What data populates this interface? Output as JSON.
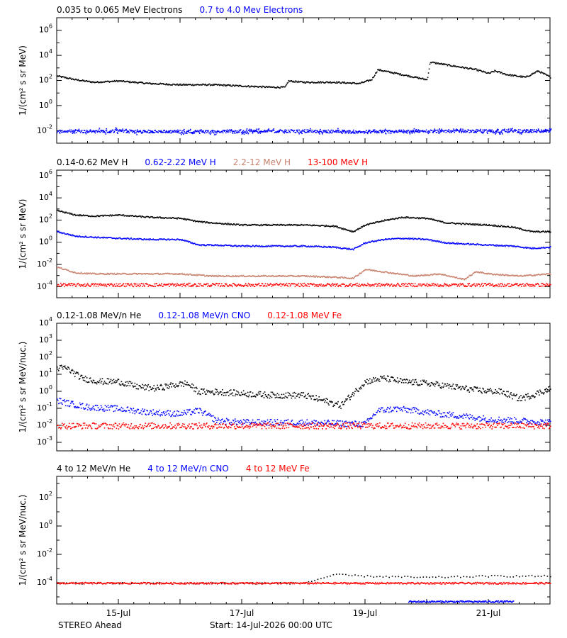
{
  "chart_data": [
    {
      "type": "scatter",
      "title_entries": [
        {
          "name": "0.035 to 0.065 MeV Electrons",
          "color": "#000000"
        },
        {
          "name": "0.7 to 4.0 Mev Electrons",
          "color": "#0000ff"
        }
      ],
      "ylabel": "1/(cm² s sr MeV)",
      "ylim_log10": [
        -3,
        7
      ],
      "y_ticks_exp": [
        -2,
        0,
        2,
        4,
        6
      ],
      "series": [
        {
          "name": "0.035 to 0.065 MeV Electrons",
          "color": "#000000",
          "x_days": [
            0.0,
            0.3,
            0.6,
            1.0,
            1.5,
            2.0,
            2.5,
            3.0,
            3.5,
            3.7,
            3.75,
            4.0,
            4.5,
            4.9,
            5.1,
            5.2,
            5.4,
            5.7,
            6.0,
            6.05,
            6.3,
            6.8,
            7.0,
            7.1,
            7.3,
            7.6,
            7.8,
            8.0
          ],
          "y_log10": [
            2.4,
            2.1,
            1.9,
            2.0,
            1.8,
            1.7,
            1.7,
            1.6,
            1.5,
            1.5,
            2.0,
            1.9,
            1.9,
            1.8,
            2.1,
            2.9,
            2.7,
            2.4,
            2.1,
            3.5,
            3.3,
            2.9,
            2.6,
            2.8,
            2.5,
            2.3,
            2.8,
            2.3
          ]
        },
        {
          "name": "0.7 to 4.0 Mev Electrons",
          "color": "#0000ff",
          "x_days": [
            0.0,
            1.0,
            2.0,
            3.0,
            4.0,
            5.0,
            6.0,
            7.0,
            8.0
          ],
          "y_log10": [
            -2.0,
            -2.0,
            -2.05,
            -2.0,
            -2.0,
            -2.05,
            -2.0,
            -2.0,
            -2.0
          ]
        }
      ]
    },
    {
      "type": "scatter",
      "title_entries": [
        {
          "name": "0.14-0.62 MeV H",
          "color": "#000000"
        },
        {
          "name": "0.62-2.22 MeV H",
          "color": "#0000ff"
        },
        {
          "name": "2.2-12 MeV H",
          "color": "#c8826e"
        },
        {
          "name": "13-100 MeV H",
          "color": "#ff0000"
        }
      ],
      "ylabel": "1/(cm² s sr MeV)",
      "ylim_log10": [
        -5,
        6.5
      ],
      "y_ticks_exp": [
        -4,
        -2,
        0,
        2,
        4,
        6
      ],
      "series": [
        {
          "name": "0.14-0.62 MeV H",
          "color": "#000000",
          "x_days": [
            0.0,
            0.3,
            0.6,
            1.0,
            1.5,
            2.0,
            2.3,
            2.5,
            3.0,
            3.5,
            4.0,
            4.5,
            4.8,
            5.0,
            5.3,
            5.6,
            6.0,
            6.3,
            6.6,
            7.0,
            7.4,
            7.7,
            8.0
          ],
          "y_log10": [
            2.9,
            2.5,
            2.4,
            2.5,
            2.3,
            2.2,
            1.9,
            1.8,
            1.6,
            1.6,
            1.6,
            1.5,
            1.0,
            1.6,
            2.0,
            2.3,
            2.2,
            1.8,
            1.7,
            1.6,
            1.4,
            1.0,
            1.0
          ]
        },
        {
          "name": "0.62-2.22 MeV H",
          "color": "#0000ff",
          "x_days": [
            0.0,
            0.3,
            0.6,
            1.0,
            1.5,
            2.0,
            2.3,
            2.5,
            3.0,
            3.5,
            4.0,
            4.5,
            4.8,
            5.0,
            5.3,
            5.6,
            6.0,
            6.3,
            6.6,
            7.0,
            7.4,
            7.7,
            8.0
          ],
          "y_log10": [
            1.0,
            0.6,
            0.5,
            0.4,
            0.3,
            0.3,
            -0.2,
            -0.2,
            -0.3,
            -0.3,
            -0.3,
            -0.4,
            -0.6,
            0.0,
            0.3,
            0.4,
            0.3,
            0.0,
            -0.1,
            -0.2,
            -0.3,
            -0.5,
            -0.4
          ]
        },
        {
          "name": "2.2-12 MeV H",
          "color": "#c8826e",
          "x_days": [
            0.0,
            0.3,
            0.6,
            1.0,
            1.5,
            2.0,
            2.5,
            3.0,
            3.5,
            4.0,
            4.5,
            4.8,
            5.0,
            5.4,
            5.8,
            6.2,
            6.6,
            6.8,
            7.0,
            7.5,
            8.0
          ],
          "y_log10": [
            -2.2,
            -2.7,
            -2.8,
            -2.8,
            -2.8,
            -2.8,
            -3.0,
            -3.0,
            -3.0,
            -3.0,
            -3.1,
            -3.2,
            -2.4,
            -2.7,
            -3.0,
            -2.8,
            -3.3,
            -2.6,
            -2.8,
            -3.0,
            -2.8
          ]
        },
        {
          "name": "13-100 MeV H",
          "color": "#ff0000",
          "x_days": [
            0.0,
            2.0,
            4.0,
            6.0,
            8.0
          ],
          "y_log10": [
            -3.8,
            -3.8,
            -3.8,
            -3.8,
            -3.8
          ]
        }
      ]
    },
    {
      "type": "scatter",
      "title_entries": [
        {
          "name": "0.12-1.08 MeV/n He",
          "color": "#000000"
        },
        {
          "name": "0.12-1.08 MeV/n CNO",
          "color": "#0000ff"
        },
        {
          "name": "0.12-1.08 MeV Fe",
          "color": "#ff0000"
        }
      ],
      "ylabel": "1/(cm² s sr MeV/nuc.)",
      "ylim_log10": [
        -3.5,
        4
      ],
      "y_ticks_exp": [
        -3,
        -2,
        -1,
        0,
        1,
        2,
        3,
        4
      ],
      "series": [
        {
          "name": "0.12-1.08 MeV/n He",
          "color": "#000000",
          "x_days": [
            0.0,
            0.15,
            0.4,
            0.7,
            1.0,
            1.3,
            1.6,
            1.9,
            2.1,
            2.3,
            2.6,
            3.0,
            3.5,
            4.0,
            4.3,
            4.6,
            4.8,
            5.0,
            5.3,
            5.6,
            6.0,
            6.4,
            6.8,
            7.2,
            7.5,
            7.7,
            8.0
          ],
          "y_log10": [
            1.4,
            1.4,
            0.8,
            0.6,
            0.6,
            0.3,
            0.2,
            0.4,
            0.5,
            0.0,
            0.0,
            -0.1,
            -0.2,
            -0.2,
            -0.5,
            -0.8,
            -0.1,
            0.6,
            0.8,
            0.6,
            0.5,
            0.3,
            0.1,
            0.0,
            -0.4,
            -0.2,
            0.2
          ]
        },
        {
          "name": "0.12-1.08 MeV/n CNO",
          "color": "#0000ff",
          "x_days": [
            0.0,
            0.2,
            0.5,
            1.0,
            1.5,
            2.0,
            2.3,
            2.6,
            3.0,
            4.0,
            5.0,
            5.2,
            5.5,
            5.8,
            6.2,
            6.5,
            7.0,
            8.0
          ],
          "y_log10": [
            -0.5,
            -0.7,
            -0.9,
            -1.0,
            -1.2,
            -1.3,
            -1.1,
            -1.7,
            -1.8,
            -1.8,
            -1.9,
            -1.1,
            -1.0,
            -1.1,
            -1.3,
            -1.4,
            -1.6,
            -1.8
          ]
        },
        {
          "name": "0.12-1.08 MeV Fe",
          "color": "#ff0000",
          "x_days": [
            0.0,
            2.0,
            4.0,
            6.0,
            8.0
          ],
          "y_log10": [
            -2.0,
            -2.0,
            -2.0,
            -2.0,
            -2.0
          ]
        }
      ]
    },
    {
      "type": "scatter",
      "title_entries": [
        {
          "name": "4 to 12 MeV/n He",
          "color": "#000000"
        },
        {
          "name": "4 to 12 MeV/n CNO",
          "color": "#0000ff"
        },
        {
          "name": "4 to 12 MeV Fe",
          "color": "#ff0000"
        }
      ],
      "ylabel": "1/(cm² s sr MeV/nuc.)",
      "ylim_log10": [
        -5.5,
        3.5
      ],
      "y_ticks_exp": [
        -4,
        -2,
        0,
        2
      ],
      "series": [
        {
          "name": "4 to 12 MeV/n He",
          "color": "#000000",
          "x_days": [
            0.0,
            1.0,
            2.0,
            3.0,
            4.0,
            4.5,
            5.0,
            6.0,
            7.0,
            8.0
          ],
          "y_log10": [
            -4.0,
            -4.0,
            -4.0,
            -4.0,
            -4.0,
            -3.4,
            -3.5,
            -3.6,
            -3.5,
            -3.5
          ]
        },
        {
          "name": "4 to 12 MeV/n CNO",
          "color": "#0000ff",
          "x_days": [
            5.7,
            6.5,
            7.4
          ],
          "y_log10": [
            -5.3,
            -5.3,
            -5.3
          ]
        },
        {
          "name": "4 to 12 MeV Fe",
          "color": "#ff0000",
          "x_days": [
            0.0,
            8.0
          ],
          "y_log10": [
            -4.0,
            -4.0
          ]
        }
      ]
    }
  ],
  "x_axis": {
    "range_days": [
      0,
      8
    ],
    "tick_days": [
      1,
      3,
      5,
      7
    ],
    "tick_labels": [
      "15-Jul",
      "17-Jul",
      "19-Jul",
      "21-Jul"
    ],
    "label_days": [
      1,
      3,
      5,
      7,
      8
    ]
  },
  "footer": {
    "left": "STEREO Ahead",
    "center": "Start: 14-Jul-2026 00:00 UTC"
  }
}
